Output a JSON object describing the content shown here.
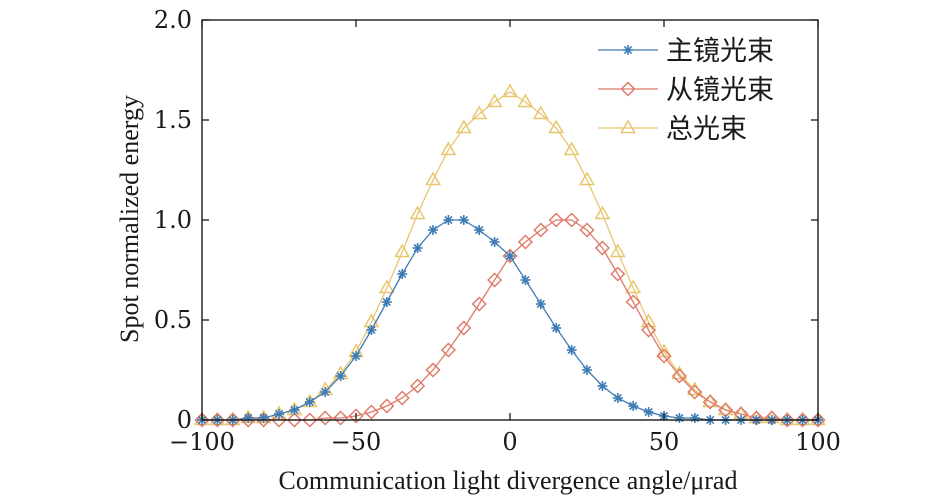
{
  "chart_data": {
    "type": "line",
    "title": "",
    "xlabel": "Communication light divergence angle/μrad",
    "ylabel": "Spot normalized energy",
    "xlim": [
      -100,
      100
    ],
    "ylim": [
      0,
      2.0
    ],
    "x_ticks": [
      -100,
      -50,
      0,
      50,
      100
    ],
    "x_tick_labels": [
      "−100",
      "−50",
      "0",
      "50",
      "100"
    ],
    "y_ticks": [
      0,
      0.5,
      1.0,
      1.5,
      2.0
    ],
    "y_tick_labels": [
      "0",
      "0.5",
      "1.0",
      "1.5",
      "2.0"
    ],
    "grid": false,
    "legend_position": "top-right",
    "x": [
      -100,
      -95,
      -90,
      -85,
      -80,
      -75,
      -70,
      -65,
      -60,
      -55,
      -50,
      -45,
      -40,
      -35,
      -30,
      -25,
      -20,
      -15,
      -10,
      -5,
      0,
      5,
      10,
      15,
      20,
      25,
      30,
      35,
      40,
      45,
      50,
      55,
      60,
      65,
      70,
      75,
      80,
      85,
      90,
      95,
      100
    ],
    "series": [
      {
        "name": "主镜光束",
        "marker": "asterisk",
        "color": "#3f7cb5",
        "values": [
          0.0,
          0.0,
          0.0,
          0.01,
          0.01,
          0.03,
          0.05,
          0.09,
          0.14,
          0.22,
          0.32,
          0.45,
          0.59,
          0.73,
          0.86,
          0.95,
          1.0,
          1.0,
          0.95,
          0.89,
          0.82,
          0.7,
          0.58,
          0.46,
          0.35,
          0.25,
          0.17,
          0.11,
          0.07,
          0.04,
          0.02,
          0.01,
          0.01,
          0.0,
          0.0,
          0.0,
          0.0,
          0.0,
          0.0,
          0.0,
          0.0
        ]
      },
      {
        "name": "从镜光束",
        "marker": "diamond",
        "color": "#e07a6a",
        "values": [
          0.0,
          0.0,
          0.0,
          0.0,
          0.0,
          0.0,
          0.0,
          0.0,
          0.01,
          0.01,
          0.02,
          0.04,
          0.07,
          0.11,
          0.17,
          0.25,
          0.35,
          0.46,
          0.58,
          0.7,
          0.82,
          0.89,
          0.95,
          1.0,
          1.0,
          0.95,
          0.86,
          0.73,
          0.59,
          0.45,
          0.32,
          0.22,
          0.14,
          0.09,
          0.05,
          0.03,
          0.01,
          0.01,
          0.0,
          0.0,
          0.0
        ]
      },
      {
        "name": "总光束",
        "marker": "triangle",
        "color": "#e8c66e",
        "values": [
          0.0,
          0.0,
          0.0,
          0.01,
          0.01,
          0.03,
          0.05,
          0.09,
          0.15,
          0.23,
          0.34,
          0.49,
          0.66,
          0.84,
          1.03,
          1.2,
          1.35,
          1.46,
          1.53,
          1.59,
          1.64,
          1.59,
          1.53,
          1.46,
          1.35,
          1.2,
          1.03,
          0.84,
          0.66,
          0.49,
          0.34,
          0.23,
          0.15,
          0.09,
          0.05,
          0.03,
          0.01,
          0.01,
          0.0,
          0.0,
          0.0
        ]
      }
    ]
  }
}
